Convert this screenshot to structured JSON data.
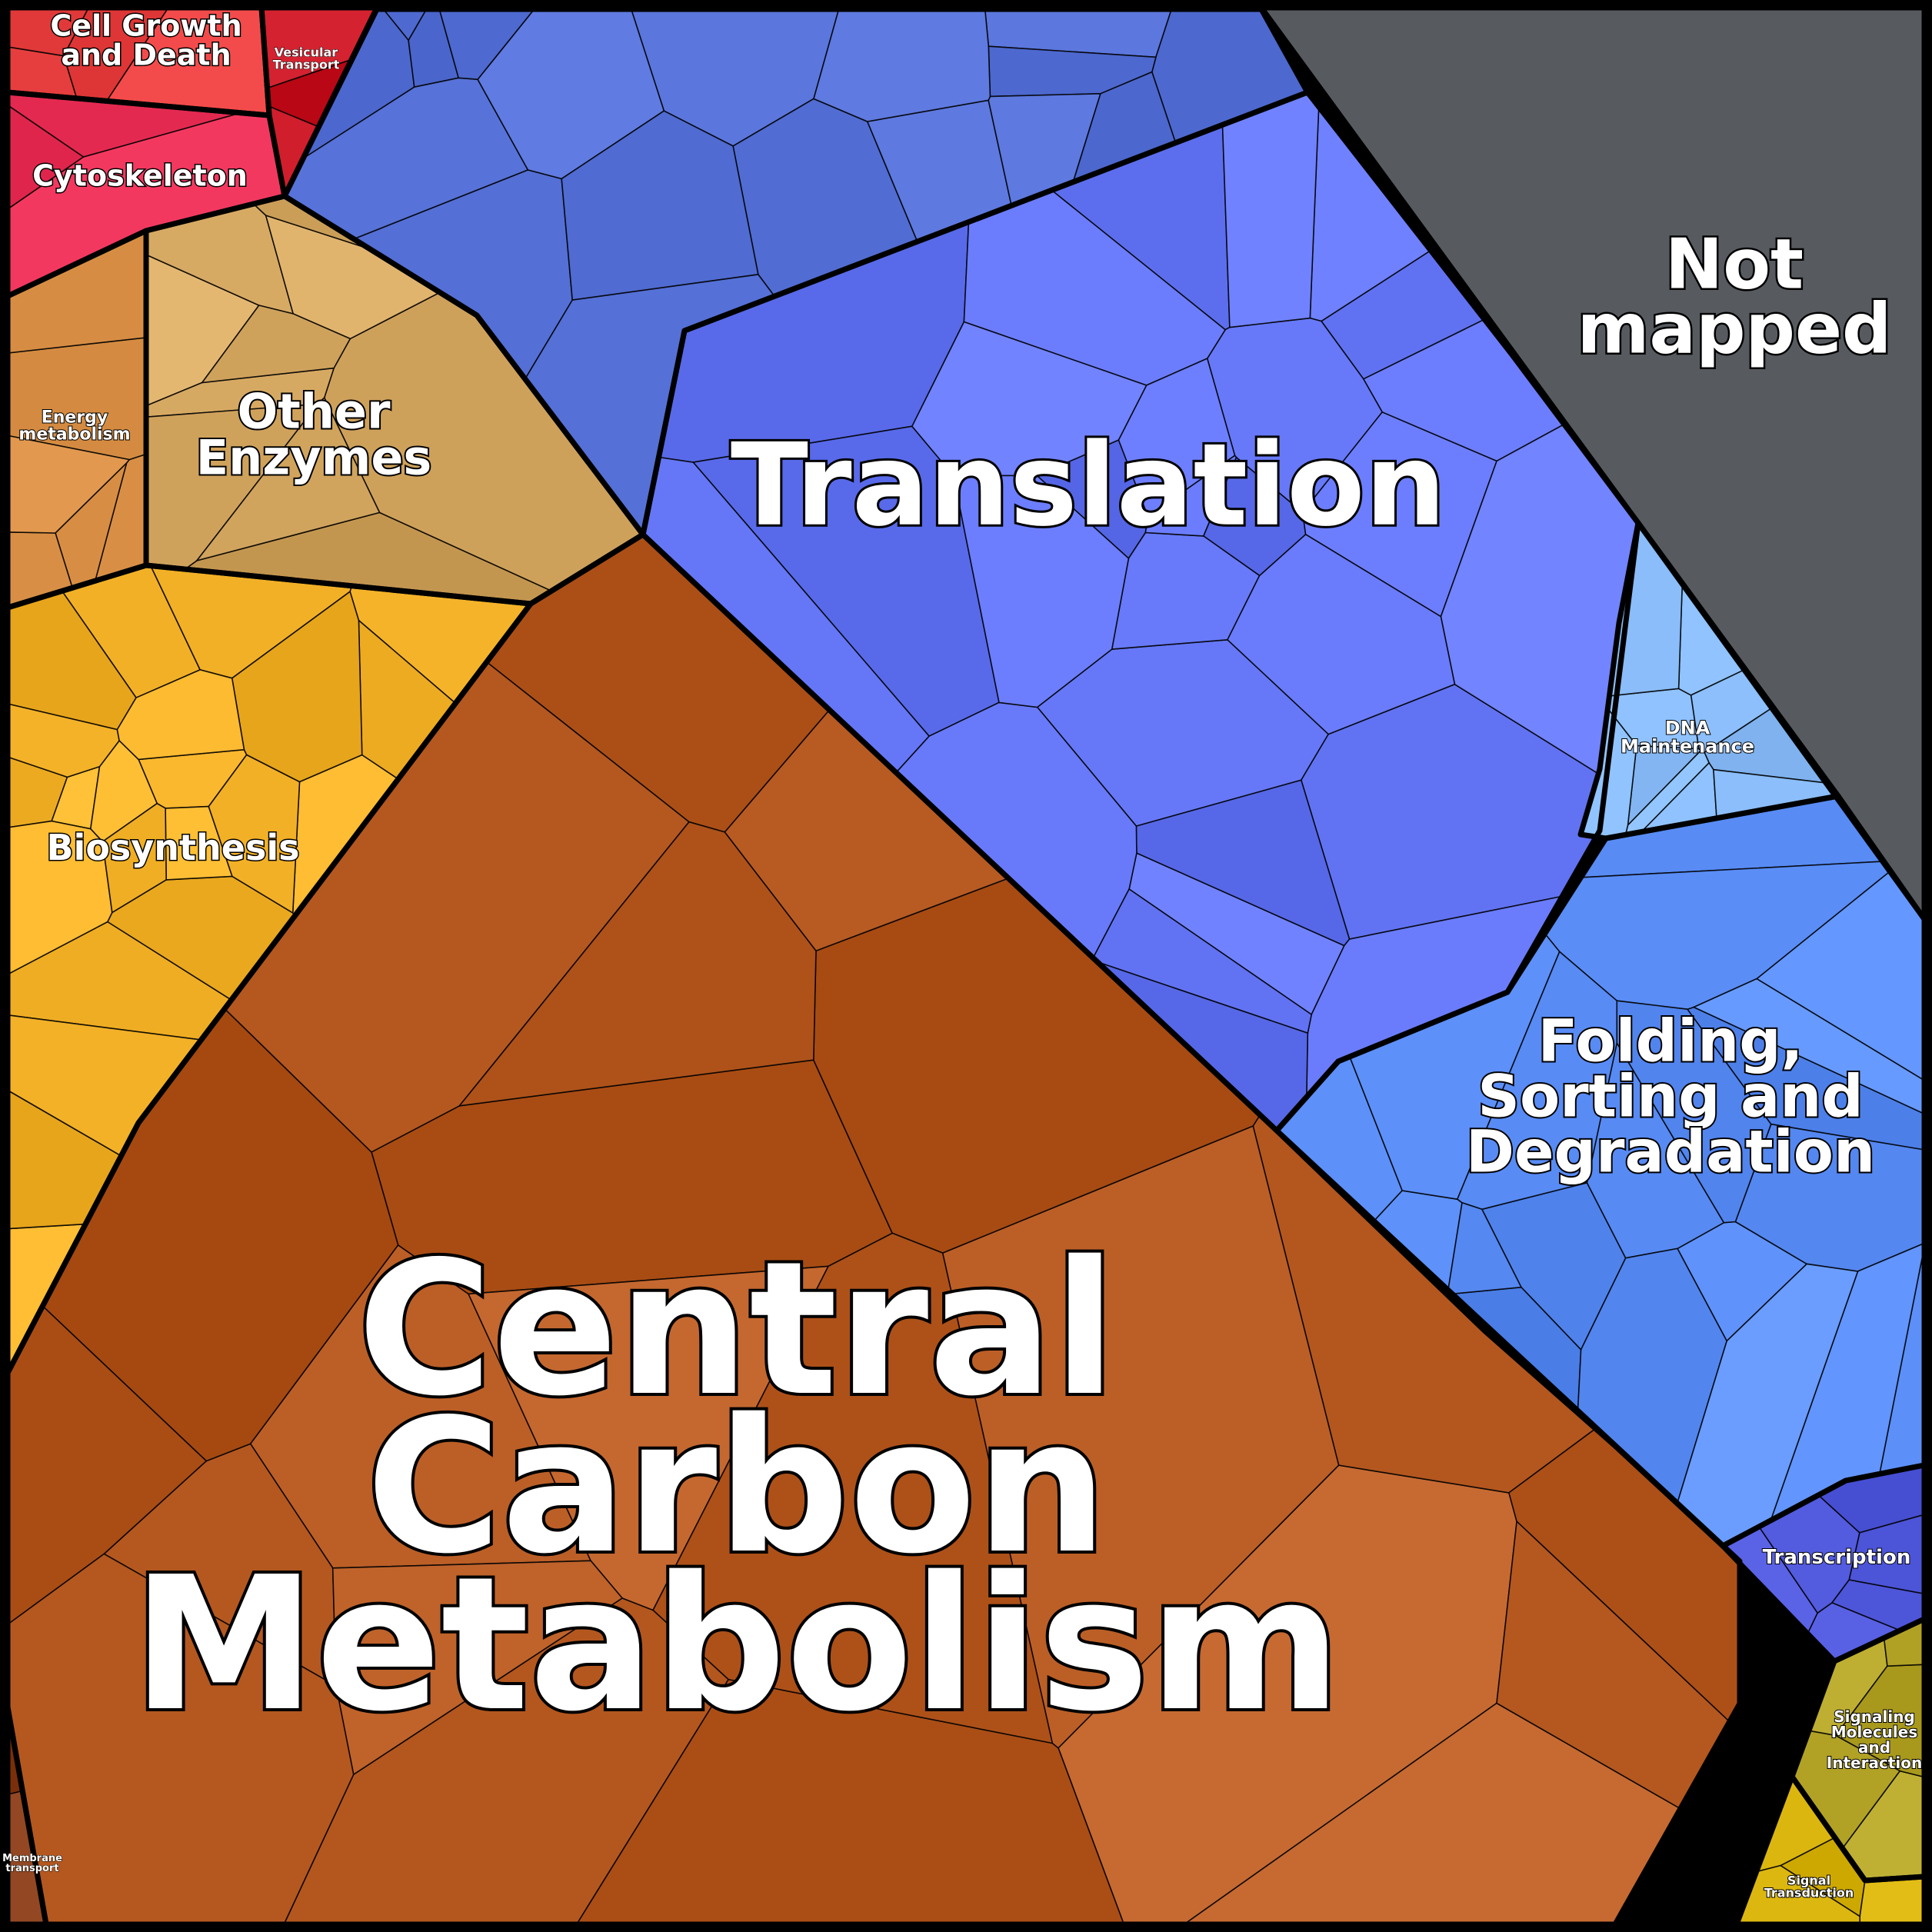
{
  "diagram": {
    "type": "proteomap",
    "regions": [
      {
        "id": "not-mapped",
        "label": [
          "Not",
          "mapped"
        ],
        "color": "#575b60"
      },
      {
        "id": "translation",
        "label": [
          "Translation"
        ],
        "color": "#6173f2"
      },
      {
        "id": "central-carbon-metabolism",
        "label": [
          "Central",
          "Carbon",
          "Metabolism"
        ],
        "color": "#b65a22"
      },
      {
        "id": "folding",
        "label": [
          "Folding,",
          "Sorting and",
          "Degradation"
        ],
        "color": "#5b8ef7"
      },
      {
        "id": "dna-maintenance",
        "label": [
          "DNA",
          "Maintenance"
        ],
        "color": "#86b9f5"
      },
      {
        "id": "transcription",
        "label": [
          "Transcription"
        ],
        "color": "#4a52d6"
      },
      {
        "id": "signaling-molecules",
        "label": [
          "Signaling",
          "Molecules",
          "and",
          "Interaction"
        ],
        "color": "#b7a82c"
      },
      {
        "id": "signal-transduction",
        "label": [
          "Signal",
          "Transduction"
        ],
        "color": "#d9b40c"
      },
      {
        "id": "membrane-transport",
        "label": [
          "Membrane",
          "transport"
        ],
        "color": "#8a3f1a"
      },
      {
        "id": "biosynthesis",
        "label": [
          "Biosynthesis"
        ],
        "color": "#f5b329"
      },
      {
        "id": "other-enzymes",
        "label": [
          "Other",
          "Enzymes"
        ],
        "color": "#d3a660"
      },
      {
        "id": "energy-metabolism",
        "label": [
          "Energy",
          "metabolism"
        ],
        "color": "#d58c42"
      },
      {
        "id": "cytoskeleton",
        "label": [
          "Cytoskeleton"
        ],
        "color": "#e3284f"
      },
      {
        "id": "cell-growth-and-death",
        "label": [
          "Cell Growth",
          "and Death"
        ],
        "color": "#e84040"
      },
      {
        "id": "vesicular-transport",
        "label": [
          "Vesicular",
          "Transport"
        ],
        "color": "#c51321"
      },
      {
        "id": "upper-translation",
        "label": [],
        "color": "#5570d6"
      }
    ]
  }
}
